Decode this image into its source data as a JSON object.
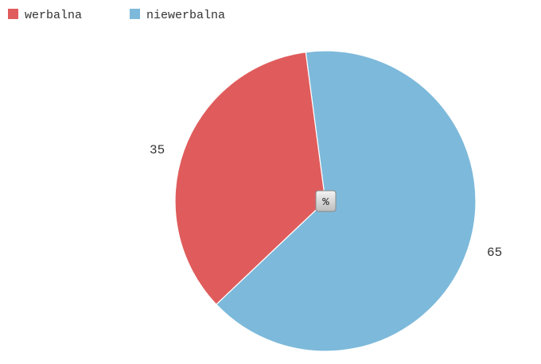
{
  "chart_data": {
    "type": "pie",
    "categories": [
      "werbalna",
      "niewerbalna"
    ],
    "values": [
      35,
      65
    ],
    "colors": [
      "#e05c5c",
      "#7db9da"
    ],
    "data_labels": [
      "35",
      "65"
    ],
    "unit_label": "%",
    "legend_position": "top-left",
    "title": ""
  }
}
